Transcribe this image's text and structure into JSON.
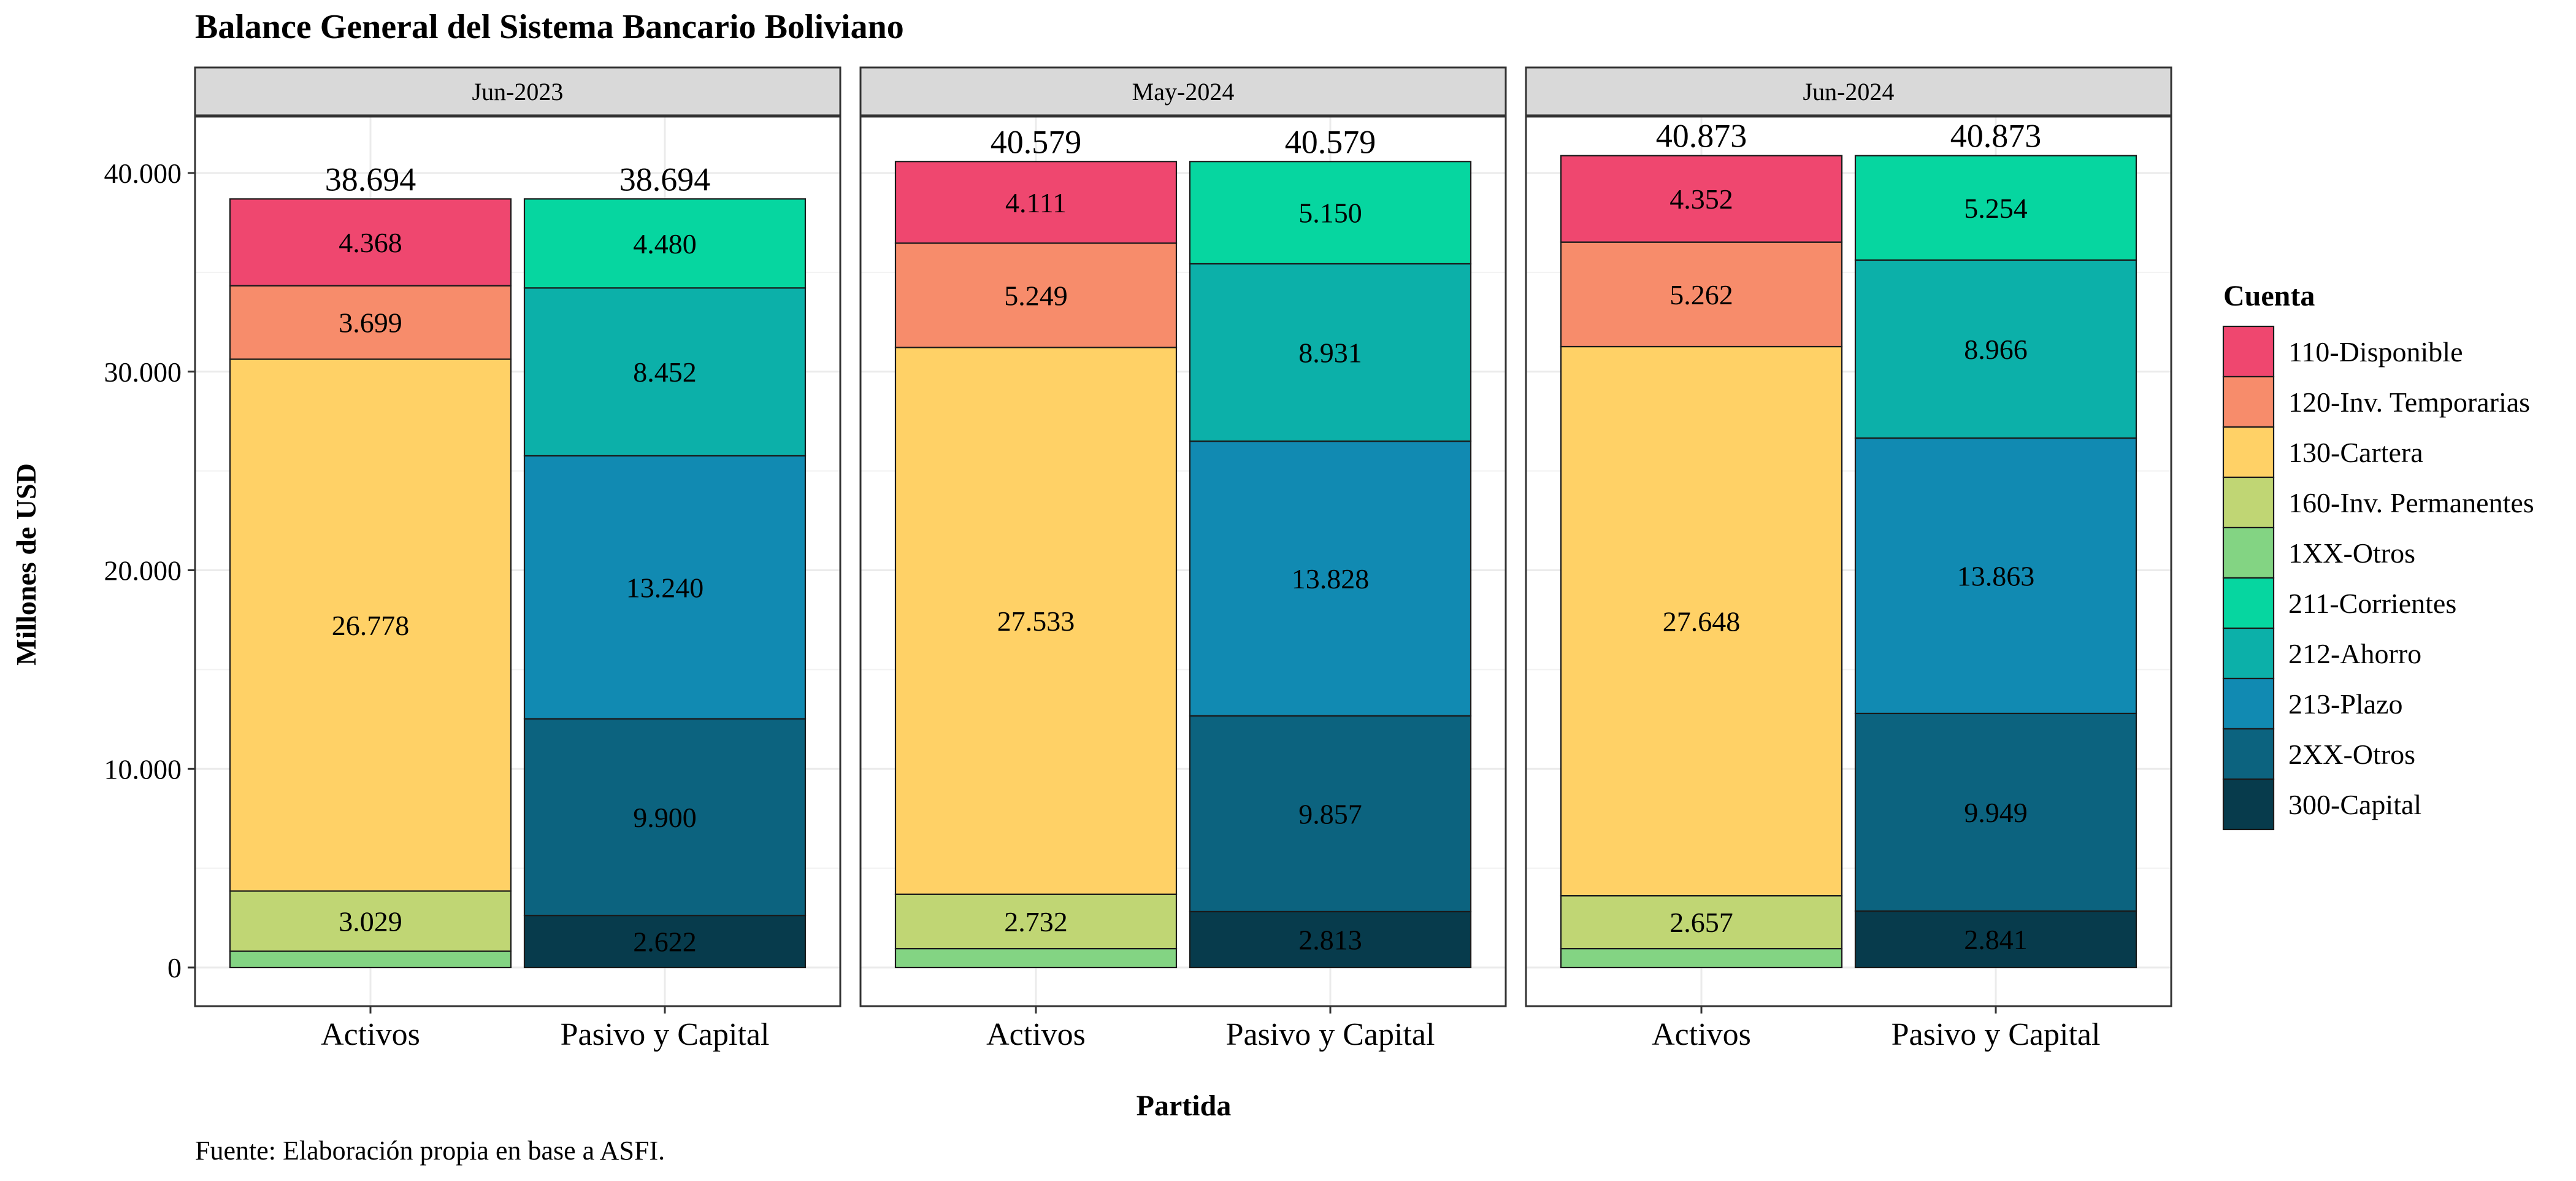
{
  "chart_data": {
    "type": "bar",
    "stacked": true,
    "title": "Balance General del Sistema Bancario Boliviano",
    "caption": "Fuente: Elaboración propia en base a ASFI.",
    "xlabel": "Partida",
    "ylabel": "Millones de USD",
    "ylim": [
      0,
      42000
    ],
    "yticks": [
      "0",
      "10.000",
      "20.000",
      "30.000",
      "40.000"
    ],
    "ytick_values": [
      0,
      10000,
      20000,
      30000,
      40000
    ],
    "grid": true,
    "categories": [
      "Activos",
      "Pasivo y Capital"
    ],
    "legend": {
      "title": "Cuenta",
      "position": "right",
      "items": [
        {
          "key": "110",
          "label": "110-Disponible",
          "color": "#EF476F"
        },
        {
          "key": "120",
          "label": "120-Inv. Temporarias",
          "color": "#F78C6B"
        },
        {
          "key": "130",
          "label": "130-Cartera",
          "color": "#FFD166"
        },
        {
          "key": "160",
          "label": "160-Inv. Permanentes",
          "color": "#C0D674"
        },
        {
          "key": "1XX",
          "label": "1XX-Otros",
          "color": "#83D483"
        },
        {
          "key": "211",
          "label": "211-Corrientes",
          "color": "#06D6A0"
        },
        {
          "key": "212",
          "label": "212-Ahorro",
          "color": "#0CB0A9"
        },
        {
          "key": "213",
          "label": "213-Plazo",
          "color": "#118AB2"
        },
        {
          "key": "2XX",
          "label": "2XX-Otros",
          "color": "#0C637F"
        },
        {
          "key": "300",
          "label": "300-Capital",
          "color": "#073B4C"
        }
      ]
    },
    "panels": [
      {
        "title": "Jun-2023",
        "bars": [
          {
            "category": "Activos",
            "total": 38694,
            "total_label": "38.694",
            "segments": [
              {
                "key": "1XX",
                "value": 819,
                "label": ""
              },
              {
                "key": "160",
                "value": 3029,
                "label": "3.029"
              },
              {
                "key": "130",
                "value": 26778,
                "label": "26.778"
              },
              {
                "key": "120",
                "value": 3699,
                "label": "3.699"
              },
              {
                "key": "110",
                "value": 4368,
                "label": "4.368"
              }
            ]
          },
          {
            "category": "Pasivo y Capital",
            "total": 38694,
            "total_label": "38.694",
            "segments": [
              {
                "key": "300",
                "value": 2622,
                "label": "2.622"
              },
              {
                "key": "2XX",
                "value": 9900,
                "label": "9.900"
              },
              {
                "key": "213",
                "value": 13240,
                "label": "13.240"
              },
              {
                "key": "212",
                "value": 8452,
                "label": "8.452"
              },
              {
                "key": "211",
                "value": 4480,
                "label": "4.480"
              }
            ]
          }
        ]
      },
      {
        "title": "May-2024",
        "bars": [
          {
            "category": "Activos",
            "total": 40579,
            "total_label": "40.579",
            "segments": [
              {
                "key": "1XX",
                "value": 954,
                "label": ""
              },
              {
                "key": "160",
                "value": 2732,
                "label": "2.732"
              },
              {
                "key": "130",
                "value": 27533,
                "label": "27.533"
              },
              {
                "key": "120",
                "value": 5249,
                "label": "5.249"
              },
              {
                "key": "110",
                "value": 4111,
                "label": "4.111"
              }
            ]
          },
          {
            "category": "Pasivo y Capital",
            "total": 40579,
            "total_label": "40.579",
            "segments": [
              {
                "key": "300",
                "value": 2813,
                "label": "2.813"
              },
              {
                "key": "2XX",
                "value": 9857,
                "label": "9.857"
              },
              {
                "key": "213",
                "value": 13828,
                "label": "13.828"
              },
              {
                "key": "212",
                "value": 8931,
                "label": "8.931"
              },
              {
                "key": "211",
                "value": 5150,
                "label": "5.150"
              }
            ]
          }
        ]
      },
      {
        "title": "Jun-2024",
        "bars": [
          {
            "category": "Activos",
            "total": 40873,
            "total_label": "40.873",
            "segments": [
              {
                "key": "1XX",
                "value": 954,
                "label": ""
              },
              {
                "key": "160",
                "value": 2657,
                "label": "2.657"
              },
              {
                "key": "130",
                "value": 27648,
                "label": "27.648"
              },
              {
                "key": "120",
                "value": 5262,
                "label": "5.262"
              },
              {
                "key": "110",
                "value": 4352,
                "label": "4.352"
              }
            ]
          },
          {
            "category": "Pasivo y Capital",
            "total": 40873,
            "total_label": "40.873",
            "segments": [
              {
                "key": "300",
                "value": 2841,
                "label": "2.841"
              },
              {
                "key": "2XX",
                "value": 9949,
                "label": "9.949"
              },
              {
                "key": "213",
                "value": 13863,
                "label": "13.863"
              },
              {
                "key": "212",
                "value": 8966,
                "label": "8.966"
              },
              {
                "key": "211",
                "value": 5254,
                "label": "5.254"
              }
            ]
          }
        ]
      }
    ]
  }
}
